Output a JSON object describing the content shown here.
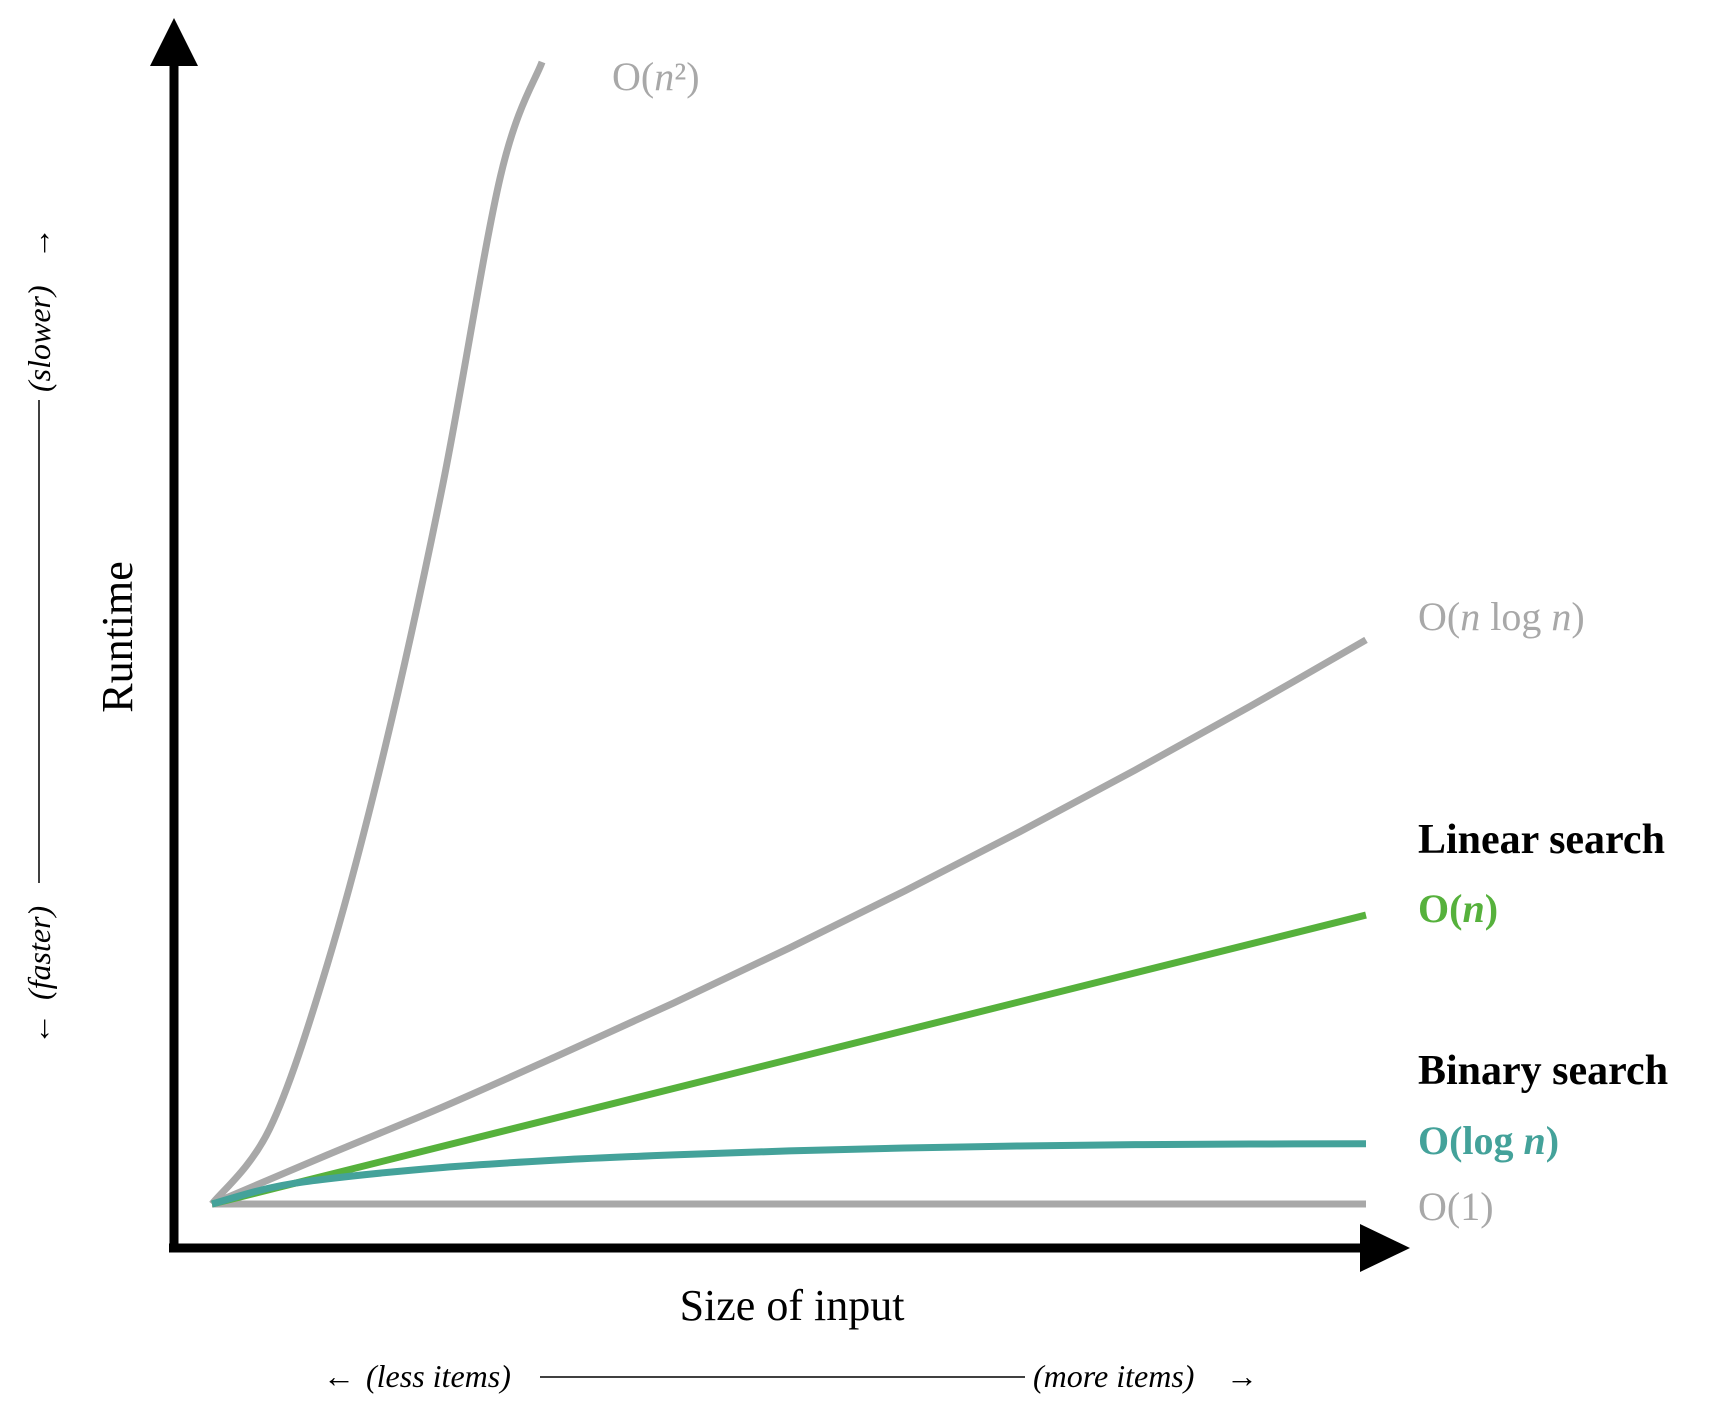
{
  "chart_data": {
    "type": "line",
    "title": "",
    "xlabel": "Size of input",
    "ylabel": "Runtime",
    "x_hint": {
      "left": "(less items)",
      "right": "(more items)"
    },
    "y_hint": {
      "low": "(faster)",
      "high": "(slower)"
    },
    "xlim": [
      0,
      1
    ],
    "ylim": [
      0,
      1
    ],
    "grid": false,
    "ticks": false,
    "colors": {
      "axis": "#000000",
      "gray": "#a8a8a8",
      "green": "#56b13c",
      "teal": "#44a29a",
      "black": "#000000"
    },
    "series": [
      {
        "name": "O(n²)",
        "label_parts": [
          [
            "O(",
            false
          ],
          [
            "n",
            true
          ],
          [
            "²)",
            false
          ]
        ],
        "label_bold": false,
        "color": "#a8a8a8",
        "x": [
          0,
          0.05,
          0.1,
          0.15,
          0.2,
          0.25,
          0.286
        ],
        "y": [
          0,
          0.066,
          0.21,
          0.4,
          0.63,
          0.9,
          1.0
        ]
      },
      {
        "name": "O(n log n)",
        "label_parts": [
          [
            "O(",
            false
          ],
          [
            "n",
            true
          ],
          [
            " log ",
            false
          ],
          [
            "n",
            true
          ],
          [
            ")",
            false
          ]
        ],
        "label_bold": false,
        "color": "#a8a8a8",
        "x": [
          0,
          0.1,
          0.2,
          0.3,
          0.4,
          0.5,
          0.6,
          0.7,
          0.8,
          0.9,
          1.0
        ],
        "y": [
          0,
          0.043,
          0.085,
          0.13,
          0.176,
          0.224,
          0.274,
          0.326,
          0.38,
          0.436,
          0.494
        ]
      },
      {
        "name": "O(n)",
        "label_parts": [
          [
            "O(",
            false
          ],
          [
            "n",
            true
          ],
          [
            ")",
            false
          ]
        ],
        "label_bold": true,
        "color": "#56b13c",
        "heading": "Linear search",
        "x": [
          0,
          1.0
        ],
        "y": [
          0,
          0.253
        ]
      },
      {
        "name": "O(log n)",
        "label_parts": [
          [
            "O(log ",
            false
          ],
          [
            "n",
            true
          ],
          [
            ")",
            false
          ]
        ],
        "label_bold": true,
        "color": "#44a29a",
        "heading": "Binary search",
        "x": [
          0,
          0.05,
          0.1,
          0.2,
          0.3,
          0.4,
          0.5,
          0.6,
          0.7,
          0.8,
          0.9,
          1.0
        ],
        "y": [
          0,
          0.014,
          0.022,
          0.032,
          0.0385,
          0.043,
          0.0465,
          0.049,
          0.0508,
          0.052,
          0.0525,
          0.0528
        ]
      },
      {
        "name": "O(1)",
        "label_parts": [
          [
            "O(1)",
            false
          ]
        ],
        "label_bold": false,
        "color": "#a8a8a8",
        "x": [
          0,
          1.0
        ],
        "y": [
          0,
          0
        ]
      }
    ]
  }
}
